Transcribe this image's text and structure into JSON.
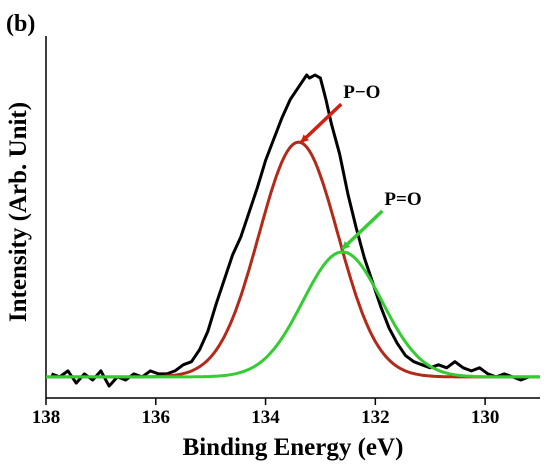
{
  "chart_data": {
    "type": "line",
    "panel_label": "(b)",
    "xlabel": "Binding Energy (eV)",
    "ylabel": "Intensity (Arb. Unit)",
    "xlim": [
      138,
      129
    ],
    "x_reversed": true,
    "ylim": [
      0,
      1
    ],
    "x_ticks": [
      138,
      136,
      134,
      132,
      130
    ],
    "y_ticks_shown": false,
    "grid": false,
    "legend": "none",
    "series": [
      {
        "color": "#000000",
        "x": [
          137.9,
          137.75,
          137.6,
          137.45,
          137.3,
          137.15,
          137.0,
          136.85,
          136.7,
          136.55,
          136.4,
          136.25,
          136.1,
          135.95,
          135.8,
          135.65,
          135.5,
          135.35,
          135.2,
          135.05,
          134.9,
          134.75,
          134.6,
          134.45,
          134.3,
          134.15,
          134.0,
          133.85,
          133.7,
          133.55,
          133.4,
          133.25,
          133.2,
          133.1,
          133.0,
          132.9,
          132.8,
          132.65,
          132.5,
          132.35,
          132.2,
          132.05,
          131.9,
          131.75,
          131.6,
          131.45,
          131.3,
          131.15,
          131.0,
          130.85,
          130.7,
          130.55,
          130.4,
          130.25,
          130.1,
          129.95,
          129.8,
          129.65,
          129.5,
          129.35,
          129.2
        ],
        "y": [
          0.02,
          0.01,
          0.03,
          -0.01,
          0.02,
          0.0,
          0.03,
          -0.02,
          0.01,
          0.0,
          0.02,
          0.01,
          0.03,
          0.02,
          0.02,
          0.03,
          0.05,
          0.06,
          0.1,
          0.16,
          0.25,
          0.33,
          0.41,
          0.47,
          0.55,
          0.63,
          0.72,
          0.79,
          0.86,
          0.92,
          0.96,
          1.0,
          0.99,
          1.0,
          0.99,
          0.92,
          0.84,
          0.74,
          0.61,
          0.5,
          0.4,
          0.32,
          0.24,
          0.17,
          0.12,
          0.08,
          0.06,
          0.05,
          0.04,
          0.05,
          0.04,
          0.06,
          0.04,
          0.03,
          0.04,
          0.02,
          0.01,
          0.02,
          0.01,
          0.0,
          0.01
        ]
      },
      {
        "name": "P−O",
        "color": "#b22a1a",
        "type": "gaussian",
        "center": 133.4,
        "height": 0.77,
        "sigma": 0.72,
        "baseline": 0.01
      },
      {
        "name": "P=O",
        "color": "#33cc33",
        "type": "gaussian",
        "center": 132.6,
        "height": 0.41,
        "sigma": 0.72,
        "baseline": 0.01
      }
    ],
    "annotations": [
      {
        "text": "P−O",
        "color": "#d02010",
        "target_x": 133.35,
        "target_y": 0.78
      },
      {
        "text": "P=O",
        "color": "#33cc33",
        "target_x": 132.6,
        "target_y": 0.43
      }
    ]
  }
}
